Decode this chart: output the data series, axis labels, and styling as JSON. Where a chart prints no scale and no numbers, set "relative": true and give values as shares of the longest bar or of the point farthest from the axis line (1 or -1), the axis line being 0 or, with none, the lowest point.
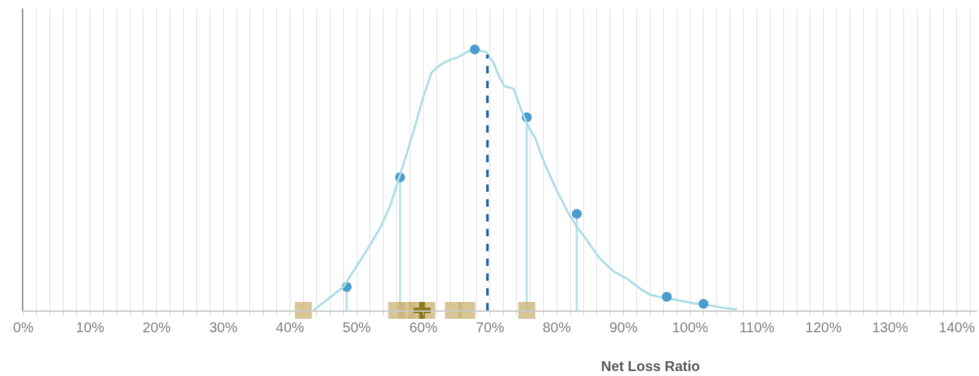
{
  "chart_data": {
    "type": "line",
    "xlabel": "Net Loss Ratio",
    "relative": true,
    "grid": "x",
    "xlim": [
      0,
      143
    ],
    "xticks": [
      {
        "value": 0,
        "label": "0%"
      },
      {
        "value": 2,
        "label": null
      },
      {
        "value": 4,
        "label": null
      },
      {
        "value": 6,
        "label": null
      },
      {
        "value": 8,
        "label": null
      },
      {
        "value": 10,
        "label": "10%"
      },
      {
        "value": 12,
        "label": null
      },
      {
        "value": 14,
        "label": null
      },
      {
        "value": 16,
        "label": null
      },
      {
        "value": 18,
        "label": null
      },
      {
        "value": 20,
        "label": "20%"
      },
      {
        "value": 22,
        "label": null
      },
      {
        "value": 24,
        "label": null
      },
      {
        "value": 26,
        "label": null
      },
      {
        "value": 28,
        "label": null
      },
      {
        "value": 30,
        "label": "30%"
      },
      {
        "value": 32,
        "label": null
      },
      {
        "value": 34,
        "label": null
      },
      {
        "value": 36,
        "label": null
      },
      {
        "value": 38,
        "label": null
      },
      {
        "value": 40,
        "label": "40%"
      },
      {
        "value": 42,
        "label": null
      },
      {
        "value": 44,
        "label": null
      },
      {
        "value": 46,
        "label": null
      },
      {
        "value": 48,
        "label": null
      },
      {
        "value": 50,
        "label": "50%"
      },
      {
        "value": 52,
        "label": null
      },
      {
        "value": 54,
        "label": null
      },
      {
        "value": 56,
        "label": null
      },
      {
        "value": 58,
        "label": null
      },
      {
        "value": 60,
        "label": "60%"
      },
      {
        "value": 62,
        "label": null
      },
      {
        "value": 64,
        "label": null
      },
      {
        "value": 66,
        "label": null
      },
      {
        "value": 68,
        "label": null
      },
      {
        "value": 70,
        "label": "70%"
      },
      {
        "value": 72,
        "label": null
      },
      {
        "value": 74,
        "label": null
      },
      {
        "value": 76,
        "label": null
      },
      {
        "value": 78,
        "label": null
      },
      {
        "value": 80,
        "label": "80%"
      },
      {
        "value": 82,
        "label": null
      },
      {
        "value": 84,
        "label": null
      },
      {
        "value": 86,
        "label": null
      },
      {
        "value": 88,
        "label": null
      },
      {
        "value": 90,
        "label": "90%"
      },
      {
        "value": 92,
        "label": null
      },
      {
        "value": 94,
        "label": null
      },
      {
        "value": 96,
        "label": null
      },
      {
        "value": 98,
        "label": null
      },
      {
        "value": 100,
        "label": "100%"
      },
      {
        "value": 102,
        "label": null
      },
      {
        "value": 104,
        "label": null
      },
      {
        "value": 106,
        "label": null
      },
      {
        "value": 108,
        "label": null
      },
      {
        "value": 110,
        "label": "110%"
      },
      {
        "value": 112,
        "label": null
      },
      {
        "value": 114,
        "label": null
      },
      {
        "value": 116,
        "label": null
      },
      {
        "value": 118,
        "label": null
      },
      {
        "value": 120,
        "label": "120%"
      },
      {
        "value": 122,
        "label": null
      },
      {
        "value": 124,
        "label": null
      },
      {
        "value": 126,
        "label": null
      },
      {
        "value": 128,
        "label": null
      },
      {
        "value": 130,
        "label": "130%"
      },
      {
        "value": 132,
        "label": null
      },
      {
        "value": 134,
        "label": null
      },
      {
        "value": 136,
        "label": null
      },
      {
        "value": 138,
        "label": null
      },
      {
        "value": 140,
        "label": "140%"
      },
      {
        "value": 142,
        "label": null
      }
    ],
    "series": [
      {
        "color": "#a8dce8",
        "x": [
          43.5,
          46,
          48,
          50,
          51.5,
          53.6,
          55,
          56,
          57.5,
          58.9,
          60,
          61.2,
          62,
          63.1,
          64,
          65.2,
          66.5,
          67.7,
          69.4,
          70.5,
          71.3,
          72.1,
          73.5,
          74.8,
          75.8,
          76.8,
          77.6,
          78.4,
          80,
          81.8,
          83,
          84.2,
          85.3,
          86.4,
          88.5,
          90.6,
          92.7,
          94,
          95.6,
          98,
          100.6,
          102.7,
          105.4,
          107
        ],
        "values": [
          0,
          0.05,
          0.09,
          0.17,
          0.23,
          0.32,
          0.4,
          0.48,
          0.6,
          0.72,
          0.82,
          0.91,
          0.93,
          0.95,
          0.96,
          0.97,
          0.99,
          1.0,
          0.99,
          0.95,
          0.9,
          0.86,
          0.85,
          0.76,
          0.7,
          0.66,
          0.6,
          0.55,
          0.46,
          0.37,
          0.32,
          0.28,
          0.24,
          0.2,
          0.15,
          0.12,
          0.08,
          0.06,
          0.05,
          0.04,
          0.027,
          0.02,
          0.008,
          0.005
        ]
      },
      {
        "type": "lollipop",
        "color": "#4a9ccc",
        "x": [
          48.5,
          56.5,
          75.5,
          83
        ],
        "values": [
          0.09,
          0.51,
          0.74,
          0.37
        ]
      },
      {
        "type": "scatter",
        "color": "#4a9ccc",
        "marker": "circle",
        "x": [
          67.7,
          96.5,
          102
        ],
        "values": [
          1.0,
          0.052,
          0.025
        ]
      },
      {
        "color": "#1a5f9e",
        "line_style": "dashed",
        "x": [
          69.6,
          69.6
        ],
        "values": [
          0,
          0.98
        ]
      },
      {
        "type": "scatter",
        "color": "#c9b173",
        "marker": "square",
        "x": [
          42,
          56,
          57.5,
          59,
          60.5,
          64.5,
          66.5,
          75.5
        ],
        "values": [
          0,
          0,
          0,
          0,
          0,
          0,
          0,
          0
        ]
      },
      {
        "type": "scatter",
        "color": "#8c7a1e",
        "marker": "cross",
        "x": [
          59.8
        ],
        "values": [
          0
        ]
      }
    ]
  }
}
